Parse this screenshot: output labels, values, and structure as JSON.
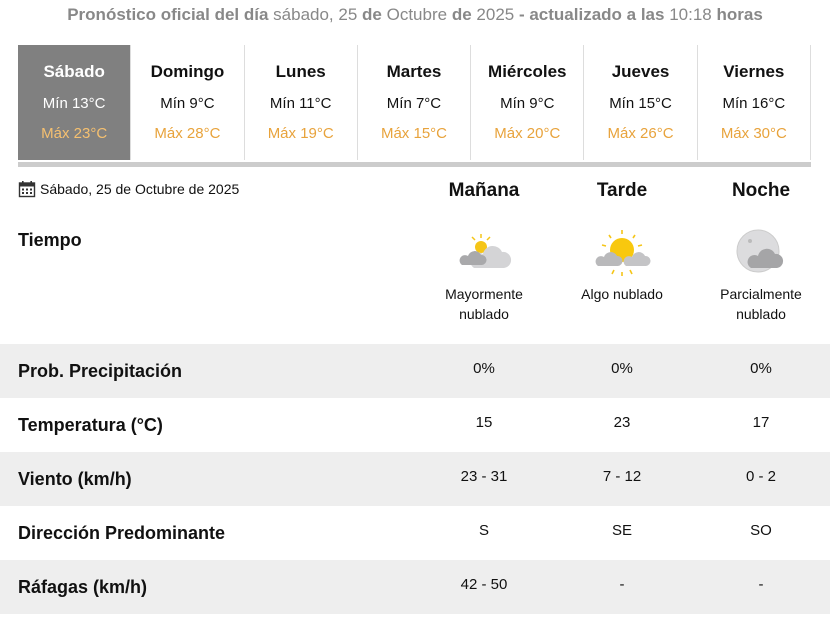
{
  "header": {
    "p1": "Pronóstico oficial del día",
    "p2": "sábado, 25",
    "p3": "de",
    "p4": "Octubre",
    "p5": "de",
    "p6": "2025",
    "p7": "- actualizado a las",
    "p8": "10:18",
    "p9": "horas"
  },
  "days": [
    {
      "name": "Sábado",
      "min": "Mín 13°C",
      "max": "Máx 23°C",
      "selected": true
    },
    {
      "name": "Domingo",
      "min": "Mín 9°C",
      "max": "Máx 28°C"
    },
    {
      "name": "Lunes",
      "min": "Mín 11°C",
      "max": "Máx 19°C"
    },
    {
      "name": "Martes",
      "min": "Mín 7°C",
      "max": "Máx 15°C"
    },
    {
      "name": "Miércoles",
      "min": "Mín 9°C",
      "max": "Máx 20°C"
    },
    {
      "name": "Jueves",
      "min": "Mín 15°C",
      "max": "Máx 26°C"
    },
    {
      "name": "Viernes",
      "min": "Mín 16°C",
      "max": "Máx 30°C"
    }
  ],
  "date_label": "Sábado, 25 de Octubre de 2025",
  "periods": [
    "Mañana",
    "Tarde",
    "Noche"
  ],
  "weather": {
    "label": "Tiempo",
    "items": [
      {
        "icon": "mostly-cloudy-day-icon",
        "desc1": "Mayormente",
        "desc2": "nublado"
      },
      {
        "icon": "partly-cloudy-sun-icon",
        "desc1": "Algo nublado",
        "desc2": ""
      },
      {
        "icon": "partly-cloudy-night-icon",
        "desc1": "Parcialmente",
        "desc2": "nublado"
      }
    ]
  },
  "rows": [
    {
      "label": "Prob. Precipitación",
      "values": [
        "0%",
        "0%",
        "0%"
      ]
    },
    {
      "label": "Temperatura (°C)",
      "values": [
        "15",
        "23",
        "17"
      ]
    },
    {
      "label": "Viento (km/h)",
      "values": [
        "23 - 31",
        "7 - 12",
        "0 - 2"
      ]
    },
    {
      "label": "Dirección Predominante",
      "values": [
        "S",
        "SE",
        "SO"
      ]
    },
    {
      "label": "Ráfagas (km/h)",
      "values": [
        "42 - 50",
        "-",
        "-"
      ]
    }
  ],
  "colors": {
    "selected_tab": "#808080",
    "max_temp": "#e8a33c",
    "row_alt": "#eeeeee"
  }
}
